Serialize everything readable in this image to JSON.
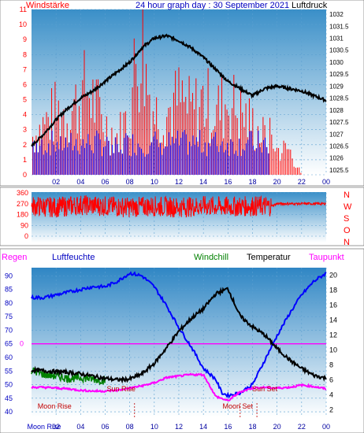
{
  "colors": {
    "wind_speed": "#ff0000",
    "wind_gust_low": "#0000ff",
    "pressure": "#000000",
    "humidity": "#0000ff",
    "windchill": "#008000",
    "temperature": "#000000",
    "dewpoint": "#ff00ff",
    "rain": "#ff00ff",
    "moon_sun": "#c00000"
  },
  "chart_data": [
    {
      "type": "bar",
      "title": "24 hour graph day : 30 September 2021",
      "ylabel": "Windstärke",
      "y2label": "Luftdruck",
      "x_ticks": [
        "02",
        "04",
        "06",
        "08",
        "10",
        "12",
        "14",
        "16",
        "18",
        "20",
        "22",
        "00"
      ],
      "ylim": [
        0,
        11
      ],
      "y_ticks": [
        "0",
        "1",
        "2",
        "3",
        "4",
        "5",
        "6",
        "7",
        "8",
        "9",
        "10",
        "11"
      ],
      "y2lim": [
        1025.3,
        1032.2
      ],
      "y2_ticks": [
        "1025.5",
        "1026",
        "1026.5",
        "1027",
        "1027.5",
        "1028",
        "1028.5",
        "1029",
        "1029.5",
        "1030",
        "1030.5",
        "1031",
        "1031.5",
        "1032"
      ],
      "series": [
        {
          "name": "Windstärke",
          "hours": [
            0,
            1,
            2,
            3,
            4,
            4.5,
            5,
            6,
            7,
            8,
            8.5,
            9,
            9.3,
            10,
            11,
            12,
            13,
            14,
            15,
            16,
            17,
            18,
            19,
            19.5,
            20,
            21,
            22,
            23,
            24
          ],
          "values": [
            3,
            4,
            5,
            5,
            6,
            7,
            6,
            4,
            3,
            5,
            9,
            11,
            8,
            5,
            5,
            6,
            5,
            6,
            5,
            6,
            5,
            4,
            3,
            3,
            2,
            2,
            0,
            0,
            0
          ]
        },
        {
          "name": "Luftdruck",
          "hours": [
            0,
            1,
            2,
            3,
            4,
            5,
            6,
            7,
            8,
            9,
            10,
            11,
            12,
            13,
            14,
            15,
            16,
            17,
            18,
            19,
            20,
            21,
            22,
            23,
            24
          ],
          "values": [
            1026.5,
            1027,
            1027.6,
            1028.1,
            1028.5,
            1028.8,
            1029.2,
            1029.6,
            1030,
            1030.6,
            1031,
            1031.1,
            1030.9,
            1030.6,
            1030.2,
            1029.7,
            1029.2,
            1028.9,
            1028.6,
            1028.9,
            1029,
            1028.9,
            1028.8,
            1028.6,
            1028.4
          ]
        }
      ]
    },
    {
      "type": "line",
      "title": "",
      "ylabel": "",
      "ylim": [
        0,
        360
      ],
      "y_ticks": [
        "0",
        "90",
        "180",
        "270",
        "360"
      ],
      "compass": [
        "N",
        "W",
        "S",
        "O",
        "N"
      ],
      "series": [
        {
          "name": "Windrichtung",
          "hours": [
            0,
            2,
            4,
            6,
            8,
            10,
            12,
            14,
            16,
            18,
            19.5,
            20,
            21,
            22,
            23,
            24
          ],
          "values": [
            250,
            240,
            260,
            250,
            240,
            250,
            240,
            250,
            245,
            250,
            250,
            270,
            270,
            270,
            270,
            270
          ]
        }
      ]
    },
    {
      "type": "line",
      "title": "",
      "ylabel": "Regen",
      "ylim": [
        38,
        93
      ],
      "y_ticks": [
        "40",
        "45",
        "50",
        "55",
        "60",
        "65",
        "70",
        "75",
        "80",
        "85",
        "90"
      ],
      "y2lim": [
        1,
        21
      ],
      "y2_ticks": [
        "2",
        "4",
        "6",
        "8",
        "10",
        "12",
        "14",
        "16",
        "18",
        "20"
      ],
      "rain_zero_label": "0",
      "x_ticks": [
        "Moon Rise",
        "02",
        "04",
        "06",
        "08",
        "10",
        "12",
        "14",
        "16",
        "18",
        "20",
        "22",
        "00"
      ],
      "legend": [
        "Luftfeuchte",
        "Windchill",
        "Temperatur",
        "Taupunkt"
      ],
      "series": [
        {
          "name": "Luftfeuchte",
          "hours": [
            0,
            1,
            2,
            3,
            4,
            5,
            6,
            7,
            8,
            9,
            10,
            11,
            12,
            13,
            14,
            15,
            15.5,
            16,
            17,
            18,
            19,
            20,
            21,
            22,
            23,
            24
          ],
          "values": [
            82,
            82,
            83,
            84,
            85,
            86,
            86,
            88,
            91,
            90,
            86,
            79,
            71,
            64,
            56,
            52,
            47,
            46,
            47,
            50,
            59,
            68,
            76,
            83,
            88,
            91
          ]
        },
        {
          "name": "Temperatur",
          "hours": [
            0,
            1,
            2,
            3,
            4,
            5,
            6,
            7,
            8,
            9,
            10,
            11,
            12,
            13,
            14,
            15,
            16,
            17,
            18,
            19,
            20,
            21,
            22,
            23,
            24
          ],
          "values": [
            7.3,
            7.2,
            7.1,
            7,
            6.8,
            6.5,
            6.2,
            6,
            6.1,
            6.8,
            8.2,
            10.3,
            12.5,
            14.2,
            15.5,
            17.5,
            18.2,
            14.5,
            13.1,
            12,
            10.2,
            8.7,
            7.5,
            6.6,
            6.2
          ]
        },
        {
          "name": "Windchill",
          "hours": [
            0,
            1,
            2,
            3,
            4,
            5,
            6
          ],
          "values": [
            7.3,
            6.7,
            6.5,
            6.2,
            6.3,
            6.1,
            5.9
          ]
        },
        {
          "name": "Taupunkt",
          "hours": [
            0,
            1,
            2,
            3,
            4,
            5,
            6,
            7,
            8,
            9,
            10,
            11,
            12,
            13,
            14,
            15,
            16,
            17,
            18,
            19,
            20,
            21,
            22,
            23,
            24
          ],
          "values": [
            5,
            5,
            4.9,
            4.8,
            4.6,
            4.5,
            4.5,
            4.6,
            4.9,
            5.2,
            5.6,
            6.3,
            6.5,
            6.7,
            6.7,
            3.8,
            3.2,
            4.4,
            4.9,
            5,
            4.9,
            5,
            5.3,
            5.1,
            4.8
          ]
        }
      ],
      "annotations": [
        {
          "text": "Moon Rise",
          "hour": 0.5
        },
        {
          "text": "Sun Rise",
          "hour": 7.3
        },
        {
          "text": "Moon Set",
          "hour": 16.8
        },
        {
          "text": "Sun Set",
          "hour": 19
        }
      ]
    }
  ]
}
